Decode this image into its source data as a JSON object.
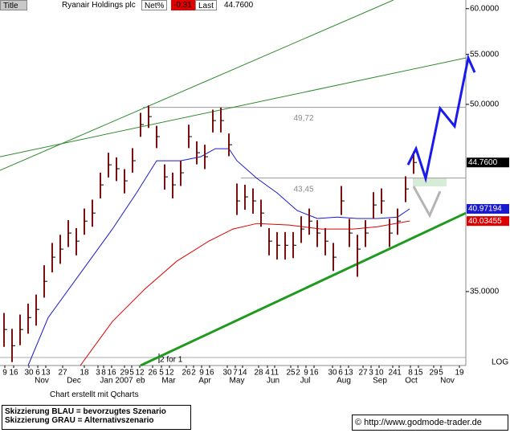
{
  "header": {
    "title_tab": "Title",
    "name": "Ryanair Holdings plc",
    "net_label": "Net%",
    "net": -0.31,
    "last_label": "Last",
    "last": "44.7600"
  },
  "footer": {
    "credit": "Chart erstellt mit Qcharts",
    "legend": [
      "Skizzierung BLAU = bevorzugtes Szenario",
      "Skizzierung GRAU = Alternativszenario"
    ],
    "copyright": "© http://www.godmode-trader.de"
  },
  "chart_data": {
    "type": "ohlc",
    "log_scale": true,
    "scale_label": "LOG",
    "xlim": [
      0,
      58
    ],
    "ylim": [
      30.4,
      61
    ],
    "yticks": [
      {
        "value": 35,
        "label": "35.0000"
      },
      {
        "value": 50,
        "label": "50.0000"
      },
      {
        "value": 55,
        "label": "55.0000"
      },
      {
        "value": 60,
        "label": "60.0000"
      }
    ],
    "xticks": [
      {
        "value": 0.6,
        "label": "9"
      },
      {
        "value": 1.7,
        "label": "16"
      },
      {
        "value": 3.6,
        "label": "30"
      },
      {
        "value": 4.7,
        "label": "6"
      },
      {
        "value": 5.7,
        "label": "13"
      },
      {
        "value": 7.8,
        "label": "27"
      },
      {
        "value": 10.5,
        "label": "18"
      },
      {
        "value": 12.2,
        "label": "3"
      },
      {
        "value": 12.9,
        "label": "8"
      },
      {
        "value": 13.9,
        "label": "16"
      },
      {
        "value": 15.5,
        "label": "29"
      },
      {
        "value": 16.4,
        "label": "5"
      },
      {
        "value": 17.4,
        "label": "12"
      },
      {
        "value": 19.0,
        "label": "26"
      },
      {
        "value": 20.1,
        "label": "5"
      },
      {
        "value": 21.1,
        "label": "12"
      },
      {
        "value": 23.2,
        "label": "26"
      },
      {
        "value": 24.1,
        "label": "2"
      },
      {
        "value": 25.1,
        "label": "9"
      },
      {
        "value": 26.1,
        "label": "16"
      },
      {
        "value": 28.3,
        "label": "30"
      },
      {
        "value": 29.3,
        "label": "7"
      },
      {
        "value": 30.2,
        "label": "14"
      },
      {
        "value": 32.2,
        "label": "28"
      },
      {
        "value": 33.3,
        "label": "4"
      },
      {
        "value": 34.2,
        "label": "11"
      },
      {
        "value": 36.2,
        "label": "25"
      },
      {
        "value": 37.1,
        "label": "2"
      },
      {
        "value": 38.1,
        "label": "9"
      },
      {
        "value": 39.1,
        "label": "16"
      },
      {
        "value": 41.4,
        "label": "30"
      },
      {
        "value": 42.4,
        "label": "6"
      },
      {
        "value": 43.4,
        "label": "13"
      },
      {
        "value": 45.2,
        "label": "27"
      },
      {
        "value": 46.2,
        "label": "3"
      },
      {
        "value": 47.2,
        "label": "10"
      },
      {
        "value": 48.9,
        "label": "24"
      },
      {
        "value": 49.7,
        "label": "1"
      },
      {
        "value": 51.1,
        "label": "8"
      },
      {
        "value": 52.1,
        "label": "15"
      },
      {
        "value": 54.0,
        "label": "29"
      },
      {
        "value": 54.9,
        "label": "5"
      },
      {
        "value": 57.2,
        "label": "19"
      }
    ],
    "month_ticks": [
      {
        "value": 5.2,
        "label": "Nov"
      },
      {
        "value": 9.2,
        "label": "Dec"
      },
      {
        "value": 14.5,
        "label": "Jan 2007"
      },
      {
        "value": 17.5,
        "label": "eb"
      },
      {
        "value": 21.0,
        "label": "Mar"
      },
      {
        "value": 25.5,
        "label": "Apr"
      },
      {
        "value": 29.5,
        "label": "May"
      },
      {
        "value": 34.0,
        "label": "Jun"
      },
      {
        "value": 38.0,
        "label": "Jul"
      },
      {
        "value": 42.8,
        "label": "Aug"
      },
      {
        "value": 47.3,
        "label": "Sep"
      },
      {
        "value": 51.2,
        "label": "Oct"
      },
      {
        "value": 55.7,
        "label": "Nov"
      }
    ],
    "bars": {
      "color": "#7a1010",
      "x": [
        0.5,
        1.5,
        2.5,
        3.5,
        4.5,
        5.5,
        6.5,
        7.5,
        8.5,
        9.5,
        10.5,
        11.5,
        12.5,
        13.5,
        14.5,
        15.5,
        16.5,
        17.5,
        18.5,
        19.5,
        20.5,
        21.5,
        22.5,
        23.5,
        24.5,
        25.5,
        26.5,
        27.5,
        28.5,
        29.5,
        30.5,
        31.5,
        32.5,
        33.5,
        34.5,
        35.5,
        36.5,
        37.5,
        38.5,
        39.5,
        40.5,
        41.5,
        42.5,
        43.5,
        44.5,
        45.5,
        46.5,
        47.5,
        48.5,
        49.5,
        50.5,
        51.5
      ],
      "high": [
        33.6,
        32.6,
        33.5,
        34.2,
        34.8,
        36.8,
        38.4,
        39.0,
        40.1,
        39.5,
        41.0,
        41.7,
        43.9,
        45.6,
        45.2,
        44.2,
        46.0,
        49.2,
        49.9,
        48.0,
        44.6,
        43.9,
        44.9,
        48.1,
        46.6,
        46.3,
        49.5,
        49.7,
        47.3,
        43.0,
        42.9,
        42.6,
        41.7,
        39.5,
        39.2,
        39.2,
        39.2,
        40.4,
        41.0,
        40.1,
        39.5,
        38.4,
        42.8,
        40.2,
        39.0,
        40.1,
        42.3,
        42.6,
        40.2,
        41.0,
        43.6,
        45.7
      ],
      "low": [
        31.5,
        30.6,
        31.6,
        32.3,
        32.8,
        34.6,
        36.3,
        36.9,
        38.1,
        37.5,
        39.0,
        39.6,
        41.8,
        43.5,
        43.2,
        42.2,
        43.9,
        47.0,
        47.8,
        46.0,
        42.5,
        41.8,
        42.8,
        46.0,
        44.6,
        44.2,
        47.4,
        47.4,
        45.3,
        40.5,
        40.9,
        40.6,
        39.6,
        37.5,
        37.2,
        37.2,
        37.3,
        38.4,
        39.0,
        38.1,
        37.5,
        36.4,
        40.5,
        38.1,
        36.0,
        38.1,
        40.2,
        40.6,
        38.1,
        39.0,
        41.5,
        43.8
      ],
      "close": [
        32.56,
        31.57,
        32.56,
        33.31,
        33.83,
        35.69,
        37.37,
        37.95,
        39.13,
        38.53,
        40.03,
        40.65,
        42.89,
        44.56,
        44.23,
        43.22,
        44.91,
        48.11,
        48.85,
        47.02,
        43.55,
        42.89,
        43.89,
        47.02,
        45.6,
        45.25,
        48.48,
        48.48,
        46.3,
        41.6,
        41.92,
        41.6,
        40.65,
        38.53,
        38.23,
        38.23,
        38.23,
        39.43,
        40.03,
        39.13,
        38.53,
        37.37,
        41.6,
        39.13,
        37.95,
        39.13,
        41.28,
        41.6,
        39.13,
        40.03,
        42.56,
        44.76
      ],
      "last_label": "44.7600"
    },
    "series": [
      {
        "color": "#1a1acc",
        "x": [
          3.5,
          6,
          10,
          14,
          17,
          19.5,
          22.5,
          25,
          26.8,
          28.5,
          29.5,
          32,
          34.5,
          37,
          39.5,
          42,
          44.5,
          47,
          49.5,
          51
        ],
        "values": [
          30.4,
          33.31,
          36.24,
          39.43,
          42.24,
          44.91,
          44.91,
          45.25,
          45.95,
          45.95,
          44.91,
          43.42,
          42.24,
          40.84,
          40.23,
          40.34,
          40.23,
          40.23,
          40.34,
          40.97194
        ]
      },
      {
        "color": "#dd0000",
        "x": [
          10,
          14,
          18,
          22,
          26,
          29,
          32,
          36,
          40,
          44,
          47,
          51
        ],
        "values": [
          30.4,
          33.06,
          35.15,
          37.08,
          38.53,
          39.43,
          39.85,
          39.73,
          39.43,
          39.43,
          39.6,
          40.03455
        ]
      }
    ],
    "trendlines": [
      {
        "color": "#2e8b2e",
        "x": [
          0,
          49
        ],
        "values": [
          44.09,
          61
        ]
      },
      {
        "color": "#2e8b2e",
        "x": [
          0,
          58
        ],
        "values": [
          45.25,
          54.63
        ]
      },
      {
        "color": "#1f9a1f",
        "x": [
          17.5,
          58
        ],
        "values": [
          30.4,
          40.65
        ],
        "bold": true
      }
    ],
    "levels": [
      {
        "label": "49,72",
        "value": 49.72,
        "x": [
          17.8,
          58
        ]
      },
      {
        "label": "43,45",
        "value": 43.45,
        "x": [
          30.0,
          58
        ]
      }
    ],
    "events": [
      {
        "x": 19.8,
        "label": "2 for 1"
      }
    ],
    "projections": [
      {
        "color": "#1a1aee",
        "x": [
          50.8,
          51.8,
          53,
          54.8,
          56.6,
          58.3,
          59.1
        ],
        "values": [
          44.56,
          45.95,
          43.42,
          49.61,
          47.96,
          54.63,
          53.14
        ]
      },
      {
        "color": "#b4b4b4",
        "x": [
          51.5,
          53.5,
          54.8
        ],
        "values": [
          42.76,
          40.47,
          42.37
        ]
      }
    ]
  }
}
